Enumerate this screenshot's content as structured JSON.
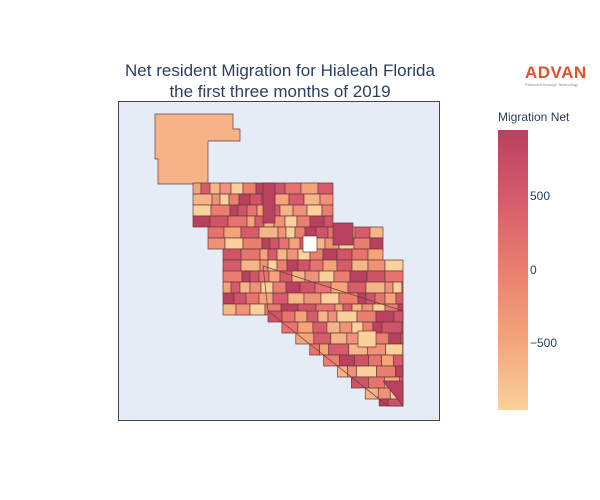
{
  "title": {
    "line1": "Net resident Migration for Hialeah Florida",
    "line2": "the first three months of 2019"
  },
  "logo": {
    "word": "ADVAN",
    "tagline": "Research through Technology",
    "color": "#e2512b"
  },
  "colorbar": {
    "title": "Migration Net",
    "ticks": [
      "500",
      "0",
      "−500"
    ],
    "colors": [
      "#b9405f",
      "#d65c6c",
      "#ea7f70",
      "#f5a47a",
      "#fad19b"
    ]
  },
  "map": {
    "background": "#e5ecf6",
    "border_color": "#444444"
  }
}
